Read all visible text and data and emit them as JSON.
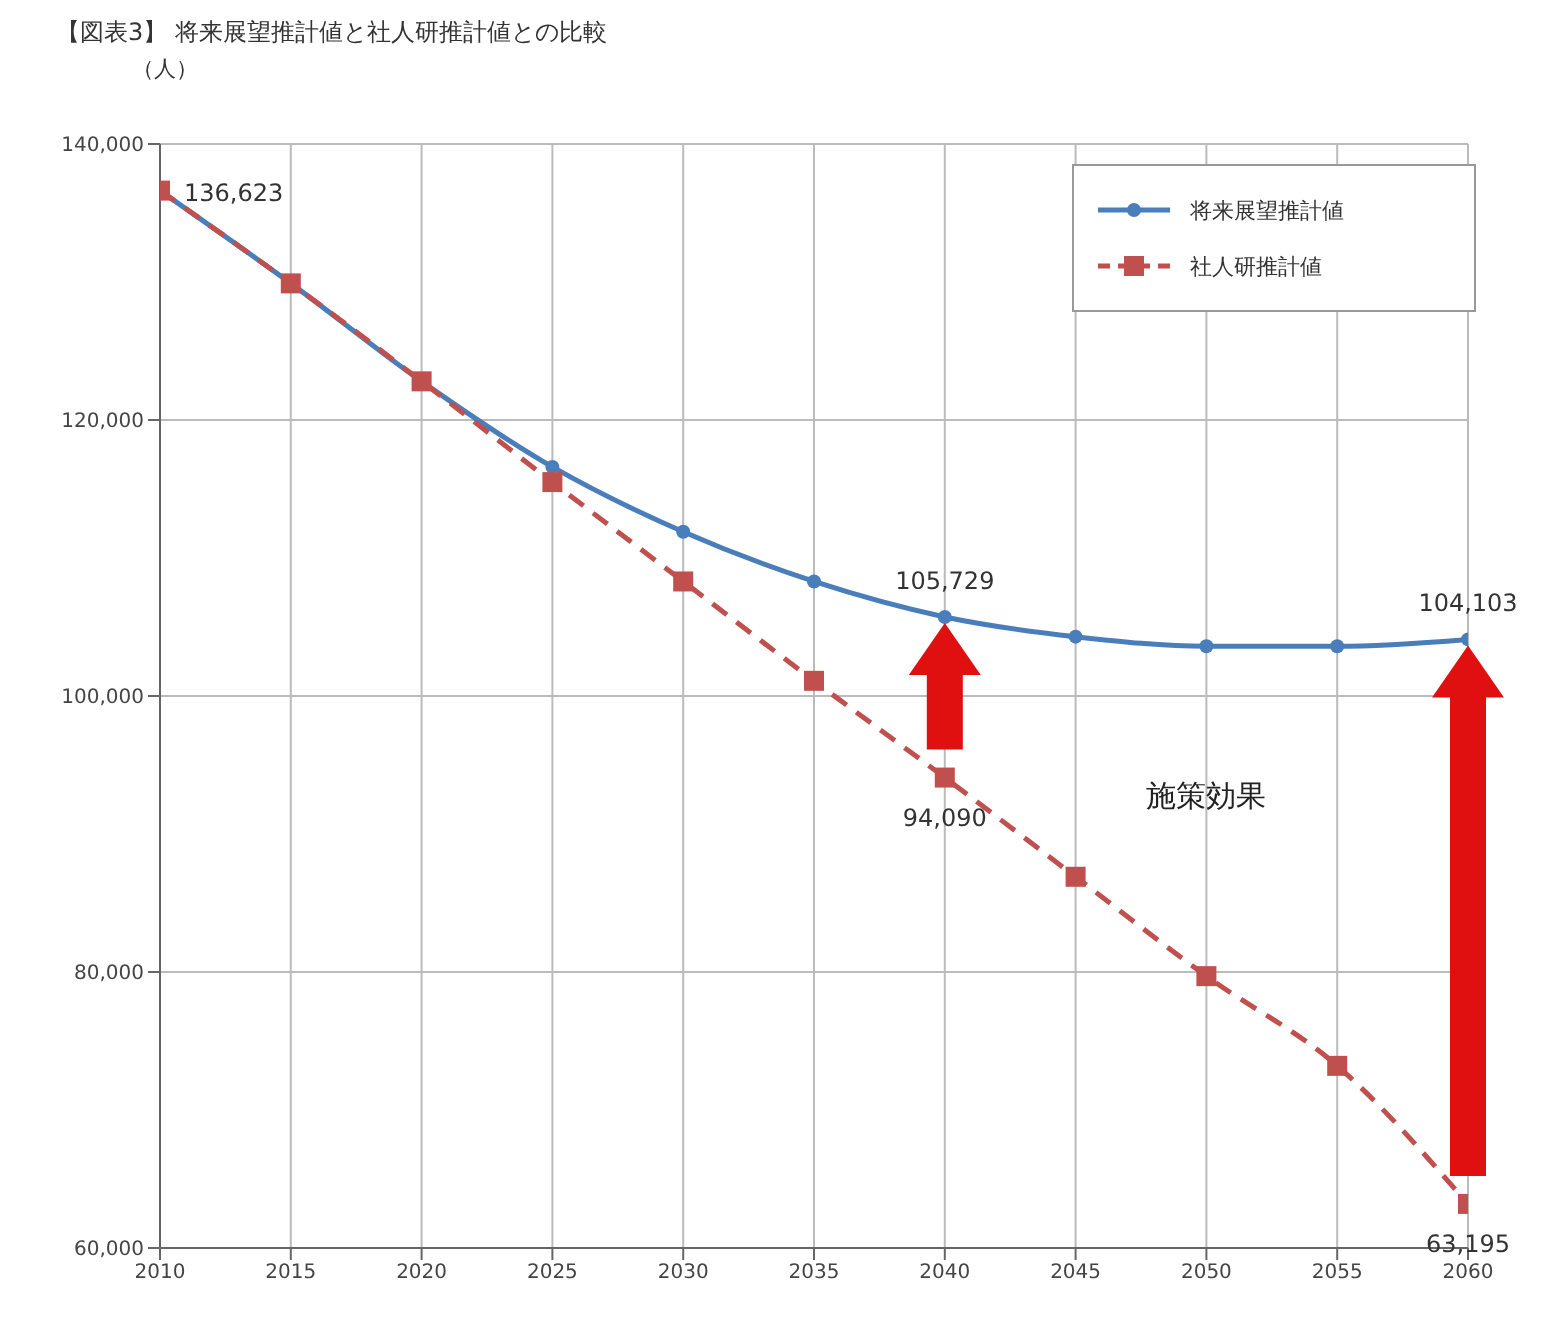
{
  "chart_data": {
    "type": "line",
    "title": "【図表3】 将来展望推計値と社人研推計値との比較",
    "ylabel": "（人）",
    "x": [
      2010,
      2015,
      2020,
      2025,
      2030,
      2035,
      2040,
      2045,
      2050,
      2055,
      2060
    ],
    "series": [
      {
        "name": "将来展望推計値",
        "color": "#4a7ebb",
        "marker": "circle",
        "line_style": "solid",
        "values": [
          136623,
          129900,
          122800,
          116600,
          111900,
          108300,
          105729,
          104300,
          103600,
          103600,
          104103
        ],
        "value_labels": [
          null,
          null,
          null,
          null,
          null,
          null,
          "105,729",
          null,
          null,
          null,
          "104,103"
        ]
      },
      {
        "name": "社人研推計値",
        "color": "#c0504d",
        "marker": "square",
        "line_style": "dashed",
        "values": [
          136623,
          129900,
          122800,
          115500,
          108300,
          101100,
          94090,
          86900,
          79700,
          73200,
          63195
        ],
        "value_labels": [
          "136,623",
          null,
          null,
          null,
          null,
          null,
          "94,090",
          null,
          null,
          null,
          "63,195"
        ]
      }
    ],
    "xlim": [
      2010,
      2060
    ],
    "xticks": [
      2010,
      2015,
      2020,
      2025,
      2030,
      2035,
      2040,
      2045,
      2050,
      2055,
      2060
    ],
    "ylim": [
      60000,
      140000
    ],
    "yticks": [
      {
        "value": 60000,
        "label": "60,000"
      },
      {
        "value": 80000,
        "label": "80,000"
      },
      {
        "value": 100000,
        "label": "100,000"
      },
      {
        "value": 120000,
        "label": "120,000"
      },
      {
        "value": 140000,
        "label": "140,000"
      }
    ],
    "grid": true,
    "legend": "top right",
    "annotations": [
      "施策効果"
    ]
  }
}
